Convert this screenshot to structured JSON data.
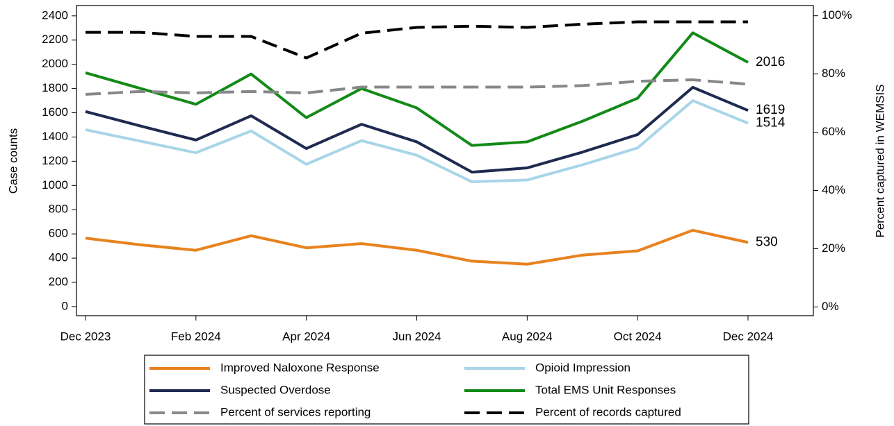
{
  "chart_data": {
    "type": "line",
    "y_label": "Case counts",
    "y2_label": "Percent captured in WEMSIS",
    "categories": [
      "Dec 2023",
      null,
      "Feb 2024",
      null,
      "Apr 2024",
      null,
      "Jun 2024",
      null,
      "Aug 2024",
      null,
      "Oct 2024",
      null,
      "Dec 2024"
    ],
    "ylim": [
      -75,
      2485
    ],
    "yticks": [
      0,
      200,
      400,
      600,
      800,
      1000,
      1200,
      1400,
      1600,
      1800,
      2000,
      2200,
      2400
    ],
    "y2lim": [
      -3,
      103.5
    ],
    "y2ticks": [
      {
        "value": 0,
        "label": "0%"
      },
      {
        "value": 20,
        "label": "20%"
      },
      {
        "value": 40,
        "label": "40%"
      },
      {
        "value": 60,
        "label": "60%"
      },
      {
        "value": 80,
        "label": "80%"
      },
      {
        "value": 100,
        "label": "100%"
      }
    ],
    "series": [
      {
        "name": "Improved Naloxone Response",
        "color": "#e8821e",
        "values": [
          565,
          510,
          465,
          585,
          485,
          520,
          465,
          375,
          350,
          425,
          460,
          630,
          530
        ]
      },
      {
        "name": "Opioid Impression",
        "color": "#a8d5e8",
        "values": [
          1460,
          1365,
          1270,
          1450,
          1175,
          1370,
          1250,
          1030,
          1045,
          1170,
          1310,
          1700,
          1514
        ]
      },
      {
        "name": "Suspected Overdose",
        "color": "#1f2a50",
        "values": [
          1610,
          1490,
          1375,
          1575,
          1305,
          1505,
          1360,
          1110,
          1145,
          1275,
          1420,
          1810,
          1619
        ]
      },
      {
        "name": "Total EMS Unit Responses",
        "color": "#138a18",
        "values": [
          1930,
          1800,
          1670,
          1920,
          1560,
          1800,
          1640,
          1330,
          1360,
          1530,
          1720,
          2260,
          2016
        ]
      },
      {
        "name": "Percent of services reporting",
        "color": "#888888",
        "dashed": true,
        "axis": "y2",
        "values": [
          73,
          74,
          73.5,
          74,
          73.5,
          75.5,
          75.5,
          75.5,
          75.5,
          76,
          77.5,
          78,
          76.5
        ]
      },
      {
        "name": "Percent of records captured",
        "color": "#000000",
        "dashed": true,
        "axis": "y2",
        "values": [
          94.3,
          94.3,
          92.9,
          92.9,
          85.5,
          94,
          96,
          96.4,
          96,
          97.1,
          97.9,
          97.9,
          97.9
        ]
      }
    ]
  }
}
